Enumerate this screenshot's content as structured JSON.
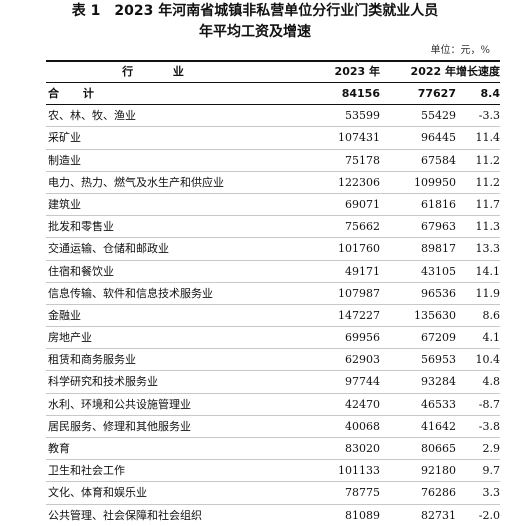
{
  "title": {
    "table_no": "表 1",
    "line1": "2023 年河南省城镇非私营单位分行业门类就业人员",
    "line2": "年平均工资及增速"
  },
  "unit": "单位：元，%",
  "columns": [
    "行 业",
    "2023 年",
    "2022 年",
    "增长速度"
  ],
  "rows": [
    {
      "industry": "合  计",
      "y2023": "84156",
      "y2022": "77627",
      "growth": "8.4"
    },
    {
      "industry": "农、林、牧、渔业",
      "y2023": "53599",
      "y2022": "55429",
      "growth": "-3.3"
    },
    {
      "industry": "采矿业",
      "y2023": "107431",
      "y2022": "96445",
      "growth": "11.4"
    },
    {
      "industry": "制造业",
      "y2023": "75178",
      "y2022": "67584",
      "growth": "11.2"
    },
    {
      "industry": "电力、热力、燃气及水生产和供应业",
      "y2023": "122306",
      "y2022": "109950",
      "growth": "11.2"
    },
    {
      "industry": "建筑业",
      "y2023": "69071",
      "y2022": "61816",
      "growth": "11.7"
    },
    {
      "industry": "批发和零售业",
      "y2023": "75662",
      "y2022": "67963",
      "growth": "11.3"
    },
    {
      "industry": "交通运输、仓储和邮政业",
      "y2023": "101760",
      "y2022": "89817",
      "growth": "13.3"
    },
    {
      "industry": "住宿和餐饮业",
      "y2023": "49171",
      "y2022": "43105",
      "growth": "14.1"
    },
    {
      "industry": "信息传输、软件和信息技术服务业",
      "y2023": "107987",
      "y2022": "96536",
      "growth": "11.9"
    },
    {
      "industry": "金融业",
      "y2023": "147227",
      "y2022": "135630",
      "growth": "8.6"
    },
    {
      "industry": "房地产业",
      "y2023": "69956",
      "y2022": "67209",
      "growth": "4.1"
    },
    {
      "industry": "租赁和商务服务业",
      "y2023": "62903",
      "y2022": "56953",
      "growth": "10.4"
    },
    {
      "industry": "科学研究和技术服务业",
      "y2023": "97744",
      "y2022": "93284",
      "growth": "4.8"
    },
    {
      "industry": "水利、环境和公共设施管理业",
      "y2023": "42470",
      "y2022": "46533",
      "growth": "-8.7"
    },
    {
      "industry": "居民服务、修理和其他服务业",
      "y2023": "40068",
      "y2022": "41642",
      "growth": "-3.8"
    },
    {
      "industry": "教育",
      "y2023": "83020",
      "y2022": "80665",
      "growth": "2.9"
    },
    {
      "industry": "卫生和社会工作",
      "y2023": "101133",
      "y2022": "92180",
      "growth": "9.7"
    },
    {
      "industry": "文化、体育和娱乐业",
      "y2023": "78775",
      "y2022": "76286",
      "growth": "3.3"
    },
    {
      "industry": "公共管理、社会保障和社会组织",
      "y2023": "81089",
      "y2022": "82731",
      "growth": "-2.0"
    }
  ]
}
